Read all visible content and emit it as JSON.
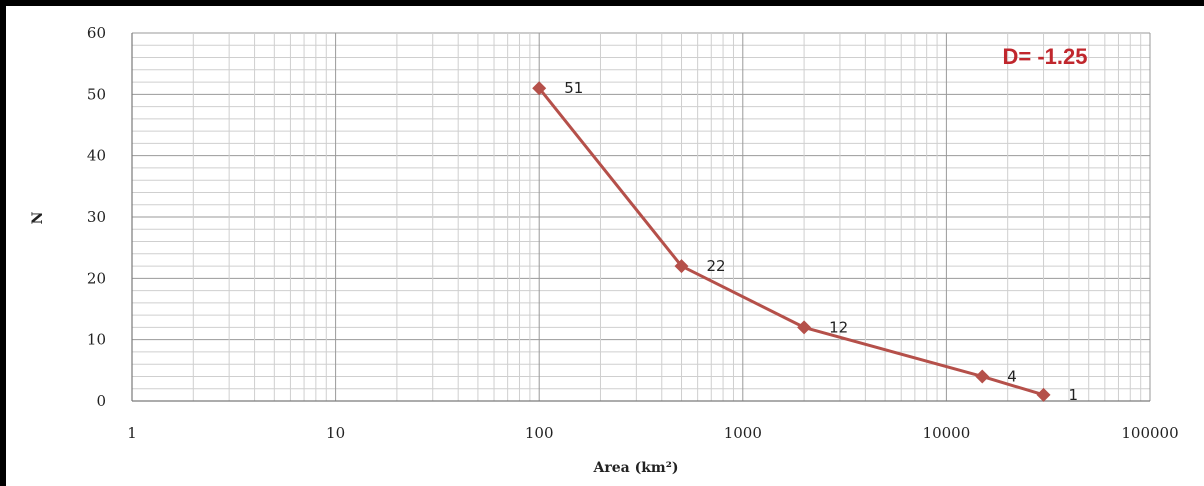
{
  "chart_data": {
    "type": "line",
    "x_scale": "log",
    "xlim": [
      1,
      100000
    ],
    "ylim": [
      0,
      60
    ],
    "x_ticks": [
      "1",
      "10",
      "100",
      "1000",
      "10000",
      "100000"
    ],
    "y_ticks": [
      "0",
      "10",
      "20",
      "30",
      "40",
      "50",
      "60"
    ],
    "xlabel": "Area (km²)",
    "ylabel": "N",
    "annotation": "D= -1.25",
    "grid": true,
    "legend": "none",
    "series": [
      {
        "x": [
          100,
          500,
          2000,
          15000,
          30000
        ],
        "y": [
          51,
          22,
          12,
          4,
          1
        ],
        "labels": [
          "51",
          "22",
          "12",
          "4",
          "1"
        ],
        "color": "#b5504a"
      }
    ]
  }
}
